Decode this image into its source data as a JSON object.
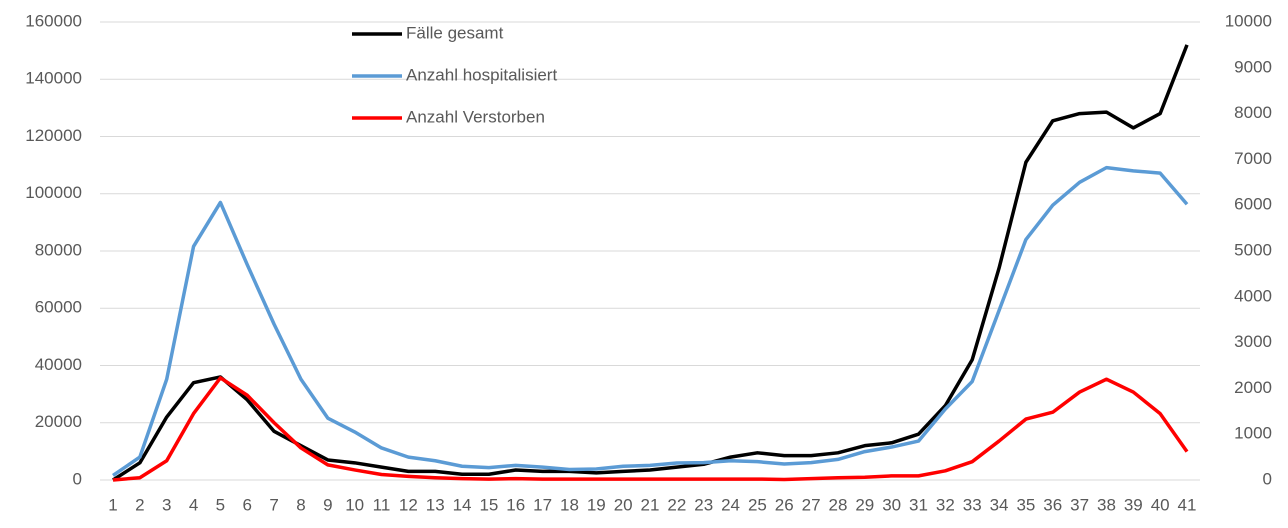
{
  "chart_data": {
    "type": "line",
    "categories": [
      "1",
      "2",
      "3",
      "4",
      "5",
      "6",
      "7",
      "8",
      "9",
      "10",
      "11",
      "12",
      "13",
      "14",
      "15",
      "16",
      "17",
      "18",
      "19",
      "20",
      "21",
      "22",
      "23",
      "24",
      "25",
      "26",
      "27",
      "28",
      "29",
      "30",
      "31",
      "32",
      "33",
      "34",
      "35",
      "36",
      "37",
      "38",
      "39",
      "40",
      "41"
    ],
    "series": [
      {
        "name": "Fälle gesamt",
        "color": "#000000",
        "values": [
          0,
          6000,
          22000,
          34000,
          36000,
          28000,
          17000,
          12000,
          7000,
          6000,
          4500,
          3000,
          3000,
          2000,
          2000,
          3500,
          3000,
          3000,
          2500,
          3000,
          3500,
          4500,
          5500,
          8000,
          9500,
          8500,
          8500,
          9500,
          12000,
          13000,
          16000,
          26000,
          42000,
          74000,
          111000,
          125500,
          128000,
          128500,
          123000,
          128000,
          152000
        ]
      },
      {
        "name": "Anzahl hospitalisiert",
        "color": "#5b9bd5",
        "axis": "y2",
        "values": [
          100,
          500,
          2200,
          5100,
          6060,
          4700,
          3400,
          2200,
          1350,
          1050,
          700,
          500,
          420,
          300,
          270,
          320,
          280,
          230,
          240,
          300,
          320,
          370,
          380,
          420,
          400,
          350,
          380,
          450,
          620,
          720,
          850,
          1550,
          2150,
          3700,
          5250,
          6000,
          6500,
          6820,
          6750,
          6700,
          6020
        ]
      },
      {
        "name": "Anzahl Verstorben",
        "color": "#ff0000",
        "axis": "y2",
        "values": [
          0,
          50,
          420,
          1450,
          2230,
          1850,
          1250,
          700,
          330,
          220,
          120,
          80,
          50,
          30,
          20,
          30,
          20,
          20,
          20,
          20,
          20,
          20,
          20,
          20,
          20,
          10,
          30,
          50,
          60,
          90,
          90,
          200,
          400,
          850,
          1330,
          1480,
          1920,
          2200,
          1920,
          1450,
          620
        ]
      }
    ],
    "ylim": [
      0,
      160000
    ],
    "yticks": [
      0,
      20000,
      40000,
      60000,
      80000,
      100000,
      120000,
      140000,
      160000
    ],
    "y2lim": [
      0,
      10000
    ],
    "y2ticks": [
      0,
      1000,
      2000,
      3000,
      4000,
      5000,
      6000,
      7000,
      8000,
      9000,
      10000
    ],
    "grid": true,
    "legend": "top"
  }
}
